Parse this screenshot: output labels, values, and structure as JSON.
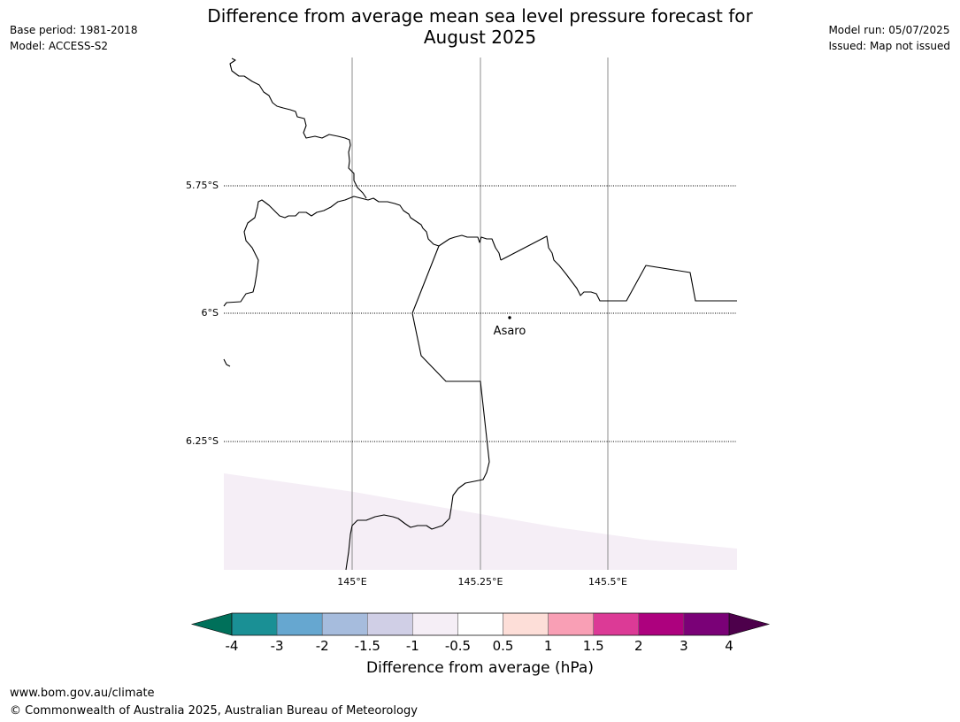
{
  "title": {
    "line1": "Difference from average mean sea level pressure forecast for",
    "line2": "August 2025"
  },
  "meta_left": {
    "base_period": "Base period: 1981-2018",
    "model": "Model: ACCESS-S2"
  },
  "meta_right": {
    "model_run": "Model run: 05/07/2025",
    "issued": "Issued: Map not issued"
  },
  "map": {
    "place_label": "Asaro",
    "lat_labels": [
      "5.75°S",
      "6°S",
      "6.25°S"
    ],
    "lon_labels": [
      "145°E",
      "145.25°E",
      "145.5°E"
    ],
    "shaded_class": "-1 to -0.5",
    "shaded_color": "#f5eef6"
  },
  "colorbar": {
    "label": "Difference from average (hPa)",
    "ticks": [
      "-4",
      "-3",
      "-2",
      "-1.5",
      "-1",
      "-0.5",
      "0.5",
      "1",
      "1.5",
      "2",
      "3",
      "4"
    ],
    "colors": [
      "#1a9095",
      "#66a7d0",
      "#a6bcdd",
      "#d0cfe6",
      "#f5eef6",
      "#ffffff",
      "#fdded8",
      "#f99fb5",
      "#dc3a96",
      "#ad017e",
      "#7a0177"
    ],
    "under_color": "#00705a",
    "over_color": "#4d004b"
  },
  "footer": {
    "url": "www.bom.gov.au/climate",
    "copyright": "© Commonwealth of Australia 2025, Australian Bureau of Meteorology"
  }
}
